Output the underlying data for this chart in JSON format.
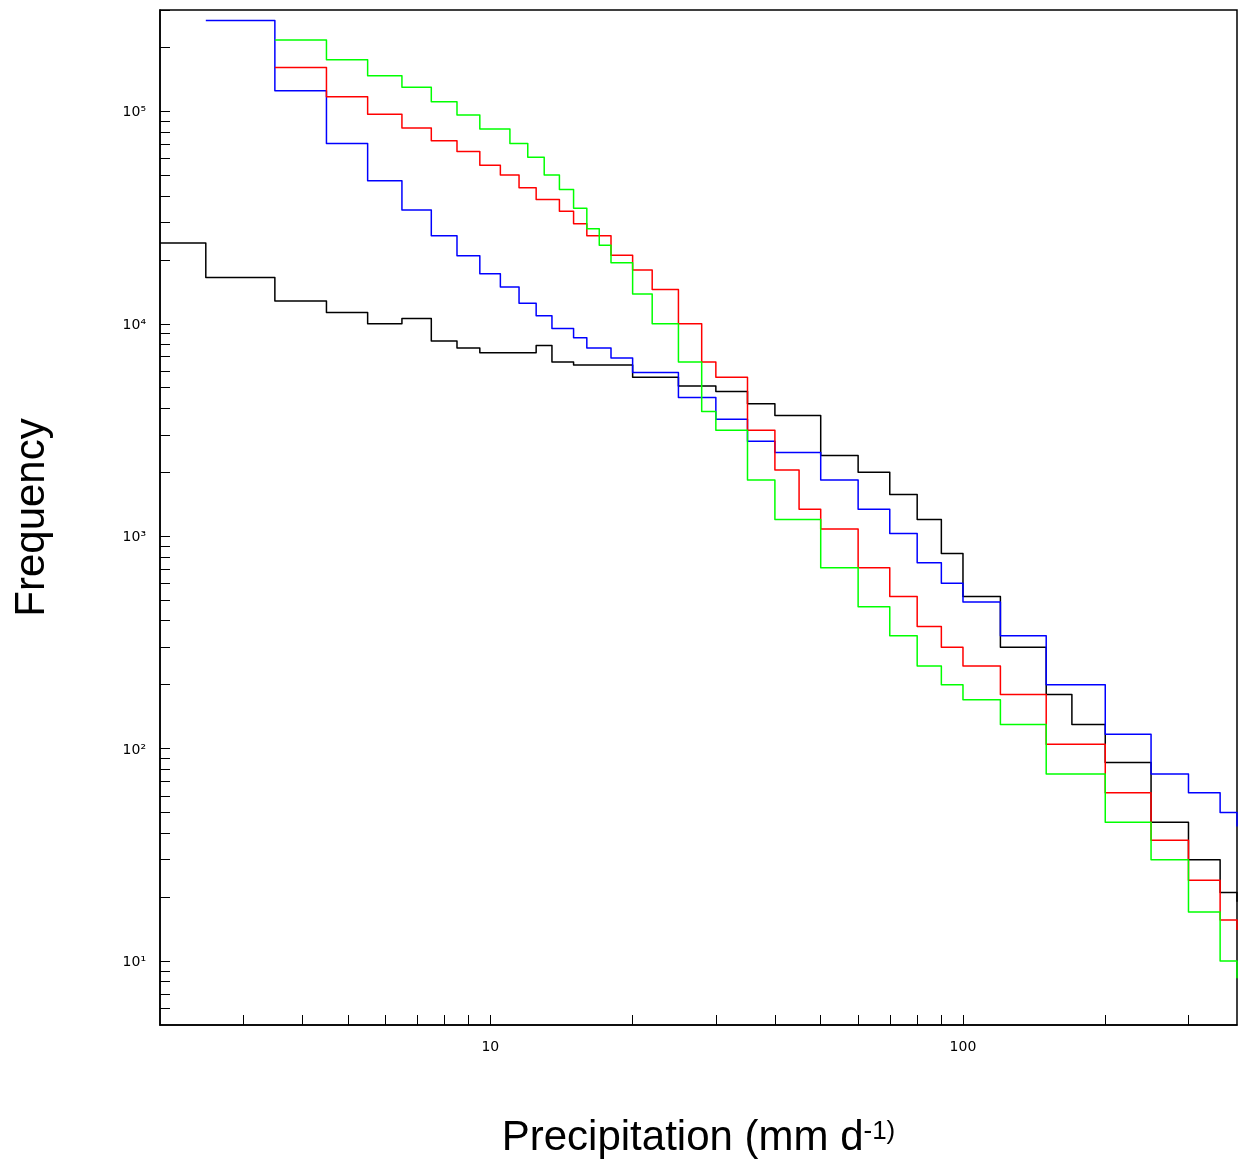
{
  "chart_data": {
    "type": "step",
    "xlabel": "Precipitation (mm d$^{-1)}$",
    "ylabel": "Frequency",
    "log": "xy",
    "marker": "none",
    "line_style": "solid",
    "xlim": [
      2,
      380
    ],
    "ylim": [
      5,
      300000
    ],
    "xticks": [
      {
        "value": 3,
        "label": null
      },
      {
        "value": 4,
        "label": null
      },
      {
        "value": 5,
        "label": null
      },
      {
        "value": 6,
        "label": null
      },
      {
        "value": 7,
        "label": null
      },
      {
        "value": 8,
        "label": null
      },
      {
        "value": 9,
        "label": null
      },
      10,
      {
        "value": 20,
        "label": null
      },
      {
        "value": 30,
        "label": null
      },
      {
        "value": 40,
        "label": null
      },
      {
        "value": 50,
        "label": null
      },
      {
        "value": 60,
        "label": null
      },
      {
        "value": 70,
        "label": null
      },
      {
        "value": 80,
        "label": null
      },
      {
        "value": 90,
        "label": null
      },
      100,
      {
        "value": 200,
        "label": null
      },
      {
        "value": 300,
        "label": null
      }
    ],
    "yticks": [
      {
        "value": 6,
        "label": null
      },
      {
        "value": 7,
        "label": null
      },
      {
        "value": 8,
        "label": null
      },
      {
        "value": 9,
        "label": null
      },
      {
        "value": 10,
        "label": "10¹"
      },
      {
        "value": 20,
        "label": null
      },
      {
        "value": 30,
        "label": null
      },
      {
        "value": 40,
        "label": null
      },
      {
        "value": 50,
        "label": null
      },
      {
        "value": 60,
        "label": null
      },
      {
        "value": 70,
        "label": null
      },
      {
        "value": 80,
        "label": null
      },
      {
        "value": 90,
        "label": null
      },
      {
        "value": 100,
        "label": "10²"
      },
      {
        "value": 200,
        "label": null
      },
      {
        "value": 300,
        "label": null
      },
      {
        "value": 400,
        "label": null
      },
      {
        "value": 500,
        "label": null
      },
      {
        "value": 600,
        "label": null
      },
      {
        "value": 700,
        "label": null
      },
      {
        "value": 800,
        "label": null
      },
      {
        "value": 900,
        "label": null
      },
      {
        "value": 1000,
        "label": "10³"
      },
      {
        "value": 2000,
        "label": null
      },
      {
        "value": 3000,
        "label": null
      },
      {
        "value": 4000,
        "label": null
      },
      {
        "value": 5000,
        "label": null
      },
      {
        "value": 6000,
        "label": null
      },
      {
        "value": 7000,
        "label": null
      },
      {
        "value": 8000,
        "label": null
      },
      {
        "value": 9000,
        "label": null
      },
      {
        "value": 10000,
        "label": "10⁴"
      },
      {
        "value": 20000,
        "label": null
      },
      {
        "value": 30000,
        "label": null
      },
      {
        "value": 40000,
        "label": null
      },
      {
        "value": 50000,
        "label": null
      },
      {
        "value": 60000,
        "label": null
      },
      {
        "value": 70000,
        "label": null
      },
      {
        "value": 80000,
        "label": null
      },
      {
        "value": 90000,
        "label": null
      },
      {
        "value": 100000,
        "label": "10⁵"
      },
      {
        "value": 200000,
        "label": null
      },
      {
        "value": 300000,
        "label": null
      }
    ],
    "series": [
      {
        "color": "#000000",
        "x": [
          2,
          2.5,
          3.5,
          4.5,
          5.5,
          6.5,
          7.5,
          8.5,
          9.5,
          12.5,
          13.5,
          15,
          20,
          25,
          30,
          35,
          40,
          50,
          60,
          70,
          80,
          90,
          100,
          120,
          150,
          170,
          200,
          250,
          300,
          350,
          380
        ],
        "values": [
          24000,
          16500,
          12800,
          11300,
          10000,
          10600,
          8300,
          7700,
          7300,
          7900,
          6600,
          6400,
          5600,
          5100,
          4800,
          4200,
          3700,
          2400,
          2000,
          1570,
          1200,
          830,
          520,
          300,
          180,
          130,
          86,
          45,
          30,
          21,
          19
        ]
      },
      {
        "color": "#0000ff",
        "x": [
          2.5,
          3.5,
          4.5,
          5.5,
          6.5,
          7.5,
          8.5,
          9.5,
          10.5,
          11.5,
          12.5,
          13.5,
          15,
          16,
          18,
          20,
          25,
          30,
          35,
          40,
          50,
          60,
          70,
          80,
          90,
          100,
          120,
          150,
          200,
          250,
          300,
          350,
          380
        ],
        "values": [
          268000,
          125000,
          70500,
          47100,
          34300,
          26000,
          20900,
          17200,
          14900,
          12500,
          10900,
          9500,
          8600,
          7700,
          6900,
          5900,
          4500,
          3550,
          2800,
          2480,
          1840,
          1340,
          1030,
          750,
          600,
          490,
          340,
          200,
          117,
          76,
          62,
          50,
          43
        ]
      },
      {
        "color": "#ff0000",
        "x": [
          3.5,
          4.5,
          5.5,
          6.5,
          7.5,
          8.5,
          9.5,
          10.5,
          11.5,
          12.5,
          14,
          15,
          16,
          18,
          20,
          22,
          25,
          28,
          30,
          35,
          40,
          45,
          50,
          60,
          70,
          80,
          90,
          100,
          120,
          150,
          200,
          250,
          300,
          350,
          380
        ],
        "values": [
          161000,
          117000,
          97000,
          83500,
          72800,
          64800,
          55800,
          50200,
          43700,
          38500,
          33900,
          29600,
          26000,
          21000,
          17900,
          14500,
          10000,
          6600,
          5600,
          3150,
          2050,
          1340,
          1080,
          710,
          520,
          376,
          300,
          245,
          180,
          105,
          62,
          37,
          24,
          15.6,
          14
        ]
      },
      {
        "color": "#00ff00",
        "x": [
          3.5,
          4.5,
          5.5,
          6.5,
          7.5,
          8.5,
          9.5,
          11,
          12,
          13,
          14,
          15,
          16,
          17,
          18,
          20,
          22,
          25,
          28,
          30,
          35,
          40,
          50,
          60,
          70,
          80,
          90,
          100,
          120,
          150,
          200,
          250,
          300,
          350,
          380
        ],
        "values": [
          217000,
          175000,
          147000,
          130000,
          111000,
          96000,
          82700,
          70500,
          60800,
          50200,
          42900,
          35000,
          28000,
          23400,
          19400,
          13800,
          10000,
          6600,
          3860,
          3150,
          1840,
          1200,
          710,
          465,
          340,
          245,
          200,
          170,
          130,
          76,
          45,
          30,
          17,
          10,
          8.3
        ]
      }
    ]
  }
}
